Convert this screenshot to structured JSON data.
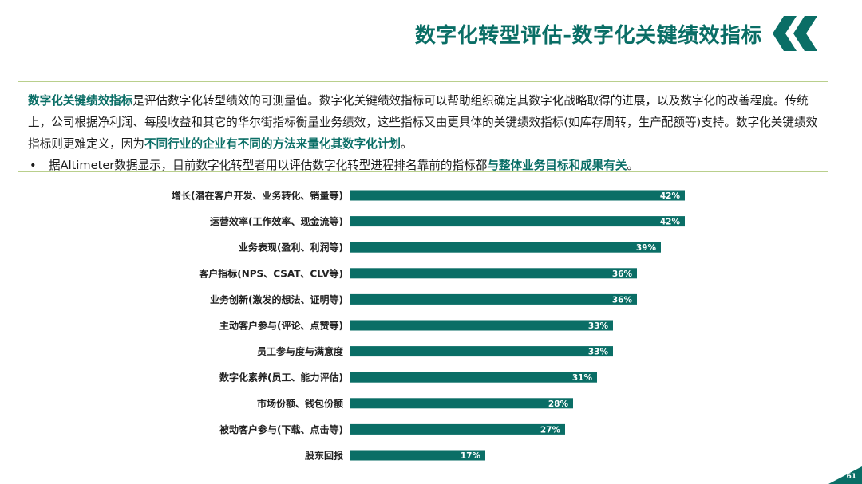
{
  "header": {
    "title": "数字化转型评估-数字化关键绩效指标",
    "logo_icon": "double-chevron-left-icon",
    "accent_color": "#0a6e66"
  },
  "intro": {
    "p1_highlight": "数字化关键绩效指标",
    "p1_text": "是评估数字化转型绩效的可测量值。数字化关键绩效指标可以帮助组织确定其数字化战略取得的进展，以及数字化的改善程度。传统上，公司根据净利润、每股收益和其它的华尔街指标衡量业务绩效，这些指标又由更具体的关键绩效指标(如库存周转，生产配额等)支持。数字化关键绩效指标则更难定义，因为",
    "p1_highlight2": "不同行业的企业有不同的方法来量化其数字化计划",
    "p1_end": "。",
    "bullet_symbol": "•",
    "bullet_text": "据Altimeter数据显示，目前数字化转型者用以评估数字化转型进程排名靠前的指标都",
    "bullet_highlight": "与整体业务目标和成果有关",
    "bullet_end": "。",
    "border_color": "#b9cf8c"
  },
  "chart_data": {
    "type": "bar",
    "orientation": "horizontal",
    "categories": [
      "增长(潜在客户开发、业务转化、销量等)",
      "运营效率(工作效率、现金流等)",
      "业务表现(盈利、利润等)",
      "客户指标(NPS、CSAT、CLV等)",
      "业务创新(激发的想法、证明等)",
      "主动客户参与(评论、点赞等)",
      "员工参与度与满意度",
      "数字化素养(员工、能力评估)",
      "市场份额、钱包份额",
      "被动客户参与(下载、点击等)",
      "股东回报"
    ],
    "values": [
      42,
      42,
      39,
      36,
      36,
      33,
      33,
      31,
      28,
      27,
      17
    ],
    "data_labels": [
      "42%",
      "42%",
      "39%",
      "36%",
      "36%",
      "33%",
      "33%",
      "31%",
      "28%",
      "27%",
      "17%"
    ],
    "bar_color": "#0a6e66",
    "label_color": "#ffffff",
    "xlim": [
      0,
      100
    ],
    "grid": false,
    "legend": "none"
  },
  "footer": {
    "page_number": "61"
  }
}
